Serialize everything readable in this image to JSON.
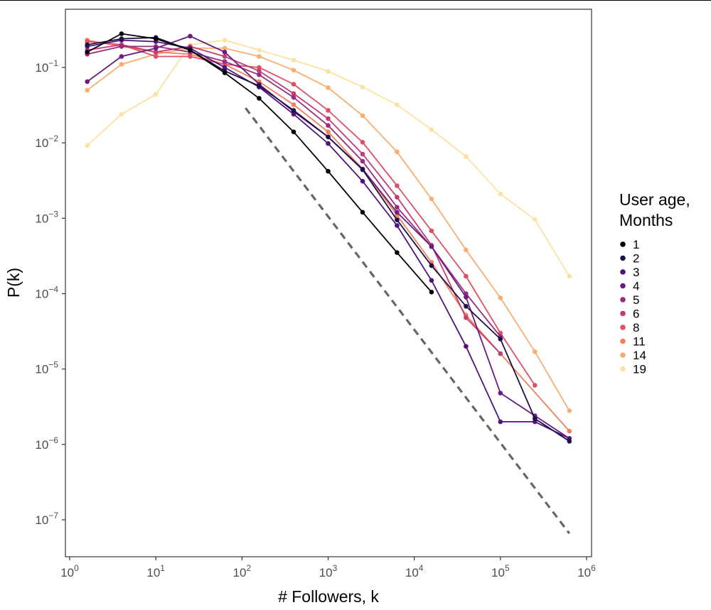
{
  "chart_data": {
    "type": "line",
    "title": "",
    "xlabel": "# Followers, k",
    "ylabel": "P(k)",
    "x_scale": "log10",
    "y_scale": "log10",
    "xlim": [
      0.8,
      800000
    ],
    "ylim": [
      4e-08,
      0.45
    ],
    "x_ticks": [
      {
        "base": "10",
        "exp": "0"
      },
      {
        "base": "10",
        "exp": "1"
      },
      {
        "base": "10",
        "exp": "2"
      },
      {
        "base": "10",
        "exp": "3"
      },
      {
        "base": "10",
        "exp": "4"
      },
      {
        "base": "10",
        "exp": "5"
      },
      {
        "base": "10",
        "exp": "6"
      }
    ],
    "y_ticks": [
      {
        "base": "10",
        "exp": "−1"
      },
      {
        "base": "10",
        "exp": "−2"
      },
      {
        "base": "10",
        "exp": "−3"
      },
      {
        "base": "10",
        "exp": "−4"
      },
      {
        "base": "10",
        "exp": "−5"
      },
      {
        "base": "10",
        "exp": "−6"
      },
      {
        "base": "10",
        "exp": "−7"
      }
    ],
    "grid": false,
    "legend": {
      "title_line1": "User age,",
      "title_line2": "Months",
      "placement": "right"
    },
    "x": [
      1.6,
      4,
      10,
      25,
      63,
      158,
      398,
      1000,
      2512,
      6310,
      15849,
      39811,
      100000,
      251189,
      630957
    ],
    "series": [
      {
        "name": "1",
        "color": "#000004",
        "values": [
          0.16,
          0.28,
          0.24,
          0.17,
          0.085,
          0.039,
          0.014,
          0.0042,
          0.0012,
          0.00035,
          0.000105,
          null,
          null,
          null,
          null
        ]
      },
      {
        "name": "2",
        "color": "#1d1147",
        "values": [
          0.2,
          0.24,
          0.25,
          0.17,
          0.09,
          0.057,
          0.027,
          0.012,
          0.0044,
          0.00095,
          0.000235,
          6.8e-05,
          2.5e-05,
          2.2e-06,
          1.1e-06
        ]
      },
      {
        "name": "3",
        "color": "#51127c",
        "values": [
          0.19,
          0.23,
          0.22,
          0.18,
          0.1,
          0.055,
          0.024,
          0.0098,
          0.0031,
          0.0008,
          0.00015,
          2e-05,
          2e-06,
          2e-06,
          1.2e-06
        ]
      },
      {
        "name": "4",
        "color": "#6a1c81",
        "values": [
          0.065,
          0.14,
          0.18,
          0.26,
          0.16,
          0.06,
          0.026,
          0.012,
          0.0045,
          0.0012,
          0.00042,
          9e-05,
          4.8e-06,
          2.4e-06,
          1.2e-06
        ]
      },
      {
        "name": "5",
        "color": "#982d80",
        "values": [
          0.15,
          0.19,
          0.19,
          0.16,
          0.12,
          0.08,
          0.04,
          0.017,
          0.0057,
          0.0014,
          0.00042,
          0.0001,
          2.7e-05,
          null,
          null
        ]
      },
      {
        "name": "6",
        "color": "#c43c75",
        "values": [
          0.17,
          0.2,
          0.16,
          0.19,
          0.14,
          0.09,
          0.045,
          0.021,
          0.0071,
          0.0019,
          0.00044,
          4.8e-05,
          1.6e-05,
          null,
          null
        ]
      },
      {
        "name": "8",
        "color": "#e04f66",
        "values": [
          0.22,
          0.2,
          0.14,
          0.14,
          0.11,
          0.1,
          0.06,
          0.027,
          0.0102,
          0.0027,
          0.00068,
          0.00017,
          3e-05,
          6.1e-06,
          null
        ]
      },
      {
        "name": "11",
        "color": "#f1805b",
        "values": [
          0.23,
          0.19,
          0.16,
          0.15,
          0.11,
          0.065,
          0.032,
          0.014,
          0.0045,
          0.0011,
          0.00026,
          5.2e-05,
          1.6e-05,
          null,
          1.5e-06
        ]
      },
      {
        "name": "14",
        "color": "#f9ad71",
        "values": [
          0.05,
          0.11,
          0.15,
          0.18,
          0.18,
          0.14,
          0.092,
          0.054,
          0.023,
          0.0076,
          0.0018,
          0.00038,
          8.8e-05,
          1.7e-05,
          2.8e-06
        ]
      },
      {
        "name": "19",
        "color": "#fce2a0",
        "values": [
          0.0092,
          0.024,
          0.044,
          0.2,
          0.23,
          0.17,
          0.125,
          0.089,
          0.055,
          0.032,
          0.015,
          0.0066,
          0.0021,
          0.00096,
          0.00017
        ]
      }
    ],
    "reference_line": {
      "style": "dashed",
      "color": "#666666",
      "x": [
        110,
        630957
      ],
      "y": [
        0.029,
        6.6e-08
      ]
    }
  }
}
